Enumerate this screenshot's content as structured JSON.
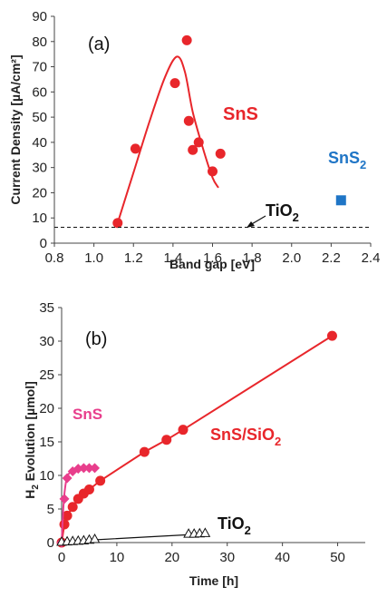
{
  "chart_data": [
    {
      "type": "scatter",
      "panel_label": "(a)",
      "xlabel": "Band gap [eV]",
      "ylabel": "Current Density [µA/cm²]",
      "xlim": [
        0.8,
        2.4
      ],
      "ylim": [
        0,
        90
      ],
      "xticks": [
        "0.8",
        "1.0",
        "1.2",
        "1.4",
        "1.6",
        "1.8",
        "2.0",
        "2.2",
        "2.4"
      ],
      "yticks": [
        "0",
        "10",
        "20",
        "30",
        "40",
        "50",
        "60",
        "70",
        "80",
        "90"
      ],
      "grid": false,
      "series": [
        {
          "name": "SnS",
          "color": "#e8262b",
          "marker": "circle",
          "points": [
            [
              1.12,
              8
            ],
            [
              1.21,
              37.5
            ],
            [
              1.41,
              63.5
            ],
            [
              1.47,
              80.5
            ],
            [
              1.48,
              48.5
            ],
            [
              1.5,
              37
            ],
            [
              1.53,
              40
            ],
            [
              1.6,
              28.5
            ],
            [
              1.64,
              35.5
            ]
          ],
          "fit": [
            [
              1.12,
              8
            ],
            [
              1.2,
              28
            ],
            [
              1.28,
              48
            ],
            [
              1.36,
              66
            ],
            [
              1.42,
              74
            ],
            [
              1.46,
              68
            ],
            [
              1.5,
              52
            ],
            [
              1.55,
              38
            ],
            [
              1.6,
              26
            ],
            [
              1.63,
              22
            ]
          ]
        },
        {
          "name": "SnS2",
          "color": "#1f75c6",
          "marker": "square",
          "points": [
            [
              2.25,
              17
            ]
          ]
        },
        {
          "name": "TiO2",
          "color": "#111111",
          "style": "dashed",
          "value": 6.3
        }
      ],
      "annotations": [
        {
          "base": "SnS",
          "sub": "",
          "color": "#e8262b"
        },
        {
          "base": "SnS",
          "sub": "2",
          "color": "#1f75c6"
        },
        {
          "base": "TiO",
          "sub": "2",
          "color": "#111111"
        }
      ]
    },
    {
      "type": "line",
      "panel_label": "(b)",
      "xlabel": "Time [h]",
      "ylabel_base": "H",
      "ylabel_sub": "2",
      "ylabel_rest": " Evolution  [µmol]",
      "xlim": [
        0,
        55
      ],
      "ylim": [
        0,
        35
      ],
      "xticks": [
        "0",
        "10",
        "20",
        "30",
        "40",
        "50"
      ],
      "yticks": [
        "0",
        "5",
        "10",
        "15",
        "20",
        "25",
        "30",
        "35"
      ],
      "grid": false,
      "series": [
        {
          "name": "SnS/SiO2",
          "color": "#e8262b",
          "marker": "circle",
          "points": [
            [
              0,
              0
            ],
            [
              0.5,
              2.7
            ],
            [
              1,
              4
            ],
            [
              2,
              5.3
            ],
            [
              3,
              6.5
            ],
            [
              4,
              7.3
            ],
            [
              5,
              7.9
            ],
            [
              7,
              9.2
            ],
            [
              15,
              13.5
            ],
            [
              19,
              15.3
            ],
            [
              22,
              16.8
            ],
            [
              49,
              30.8
            ]
          ]
        },
        {
          "name": "SnS",
          "color": "#e83e8c",
          "marker": "diamond",
          "points": [
            [
              0,
              0
            ],
            [
              0.5,
              6.5
            ],
            [
              1,
              9.6
            ],
            [
              2,
              10.6
            ],
            [
              3,
              11
            ],
            [
              4,
              11.1
            ],
            [
              5,
              11.1
            ],
            [
              6,
              11.1
            ]
          ],
          "fit": [
            [
              0,
              0
            ],
            [
              0.3,
              5
            ],
            [
              0.6,
              8
            ],
            [
              1,
              9.8
            ],
            [
              1.6,
              10.5
            ],
            [
              2.5,
              10.9
            ],
            [
              4,
              11.1
            ],
            [
              6,
              11.1
            ]
          ]
        },
        {
          "name": "TiO2",
          "color": "#111111",
          "marker": "open-triangle",
          "points": [
            [
              0,
              0
            ],
            [
              1,
              0.05
            ],
            [
              2,
              0.1
            ],
            [
              3,
              0.15
            ],
            [
              4,
              0.2
            ],
            [
              5,
              0.3
            ],
            [
              6,
              0.4
            ],
            [
              23,
              1.2
            ],
            [
              24,
              1.2
            ],
            [
              25,
              1.25
            ],
            [
              26,
              1.3
            ]
          ],
          "fit": [
            [
              0,
              0
            ],
            [
              6,
              0.4
            ],
            [
              26,
              1.3
            ]
          ]
        }
      ],
      "annotations": [
        {
          "base": "SnS/SiO",
          "sub": "2",
          "color": "#e8262b"
        },
        {
          "base": "SnS",
          "sub": "",
          "color": "#e83e8c"
        },
        {
          "base": "TiO",
          "sub": "2",
          "color": "#111111"
        }
      ]
    }
  ]
}
